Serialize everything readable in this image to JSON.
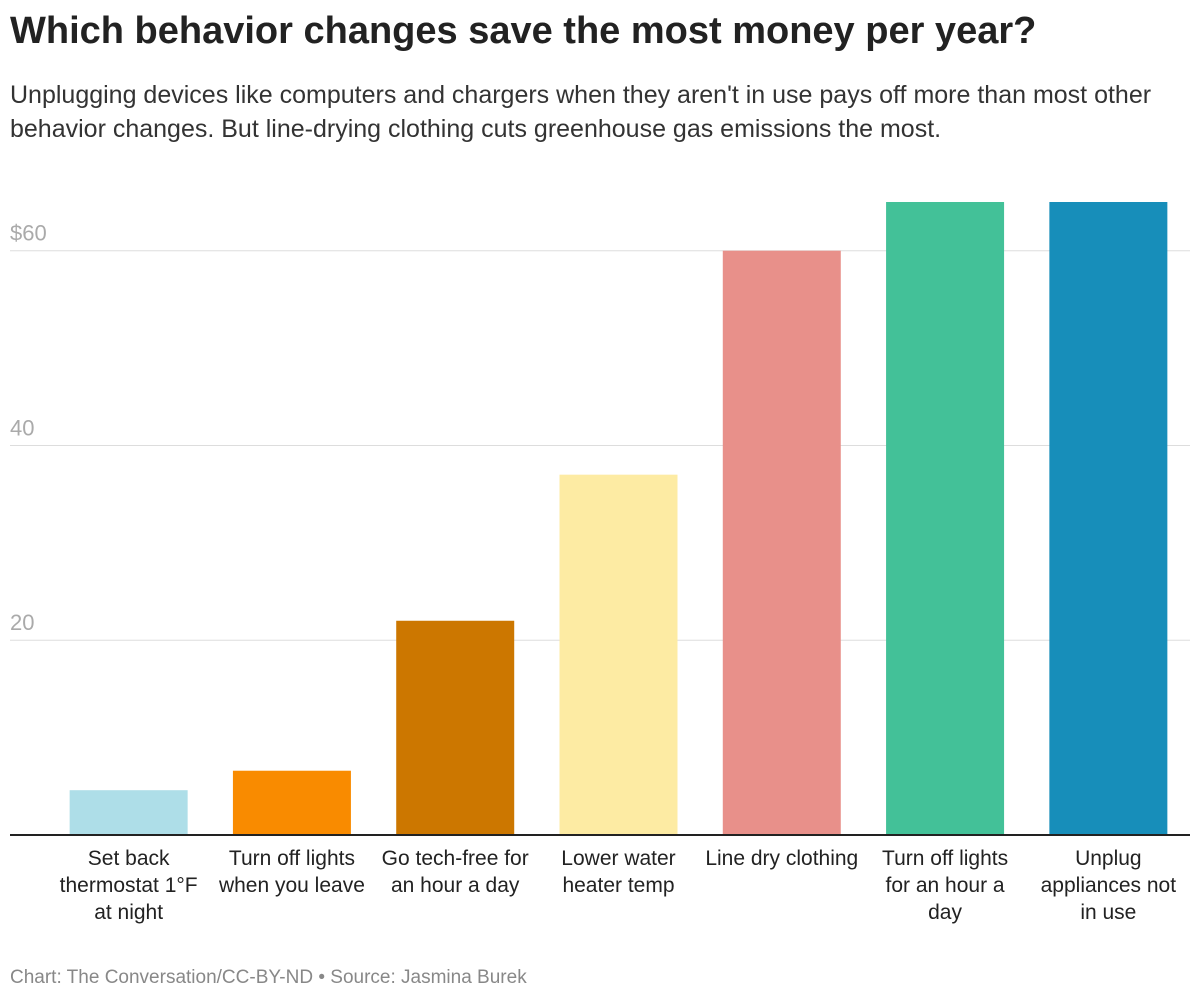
{
  "chart_data": {
    "type": "bar",
    "title": "Which behavior changes save the most money per year?",
    "subtitle": "Unplugging devices like computers and chargers when they aren't in use pays off more than most other behavior changes. But line-drying clothing cuts greenhouse gas emissions the most.",
    "categories": [
      "Set back thermostat 1°F at night",
      "Turn off lights when you leave",
      "Go tech-free for an hour a day",
      "Lower water heater temp",
      "Line dry clothing",
      "Turn off lights for an hour a day",
      "Unplug appliances not in use"
    ],
    "values": [
      4.6,
      6.6,
      22,
      37,
      60,
      65,
      65
    ],
    "colors": [
      "#aedee8",
      "#f98b00",
      "#cc7700",
      "#fdeba3",
      "#e8908a",
      "#43c198",
      "#178eba"
    ],
    "ylim": [
      0,
      65
    ],
    "yticks": [
      20,
      40,
      {
        "value": 60,
        "label": "$60"
      }
    ],
    "grid": true,
    "footer": "Chart: The Conversation/CC-BY-ND • Source: Jasmina Burek"
  }
}
